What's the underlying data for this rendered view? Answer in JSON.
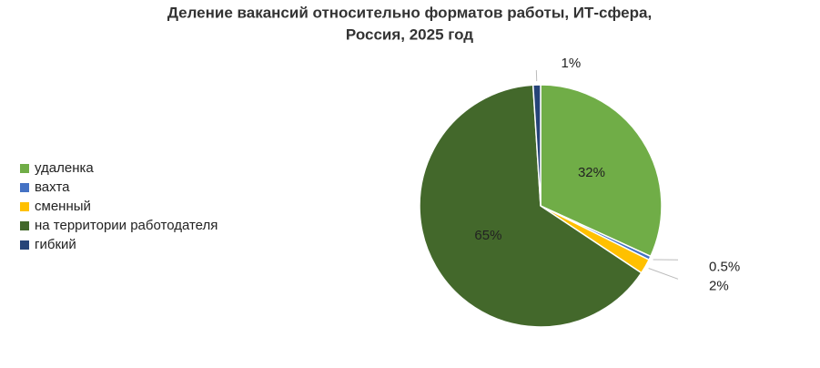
{
  "chart_data": {
    "type": "pie",
    "title": [
      "Деление вакансий относительно форматов работы, ИТ-сфера,",
      "Россия, 2025 год"
    ],
    "categories": [
      "удаленка",
      "вахта",
      "сменный",
      "на территории работодателя",
      "гибкий"
    ],
    "values": [
      32,
      0.5,
      2,
      65,
      1
    ],
    "value_labels": [
      "32%",
      "0.5%",
      "2%",
      "65%",
      "1%"
    ],
    "colors": [
      "#70ad47",
      "#4472c4",
      "#ffc000",
      "#43682b",
      "#264478"
    ],
    "legend": "left"
  }
}
